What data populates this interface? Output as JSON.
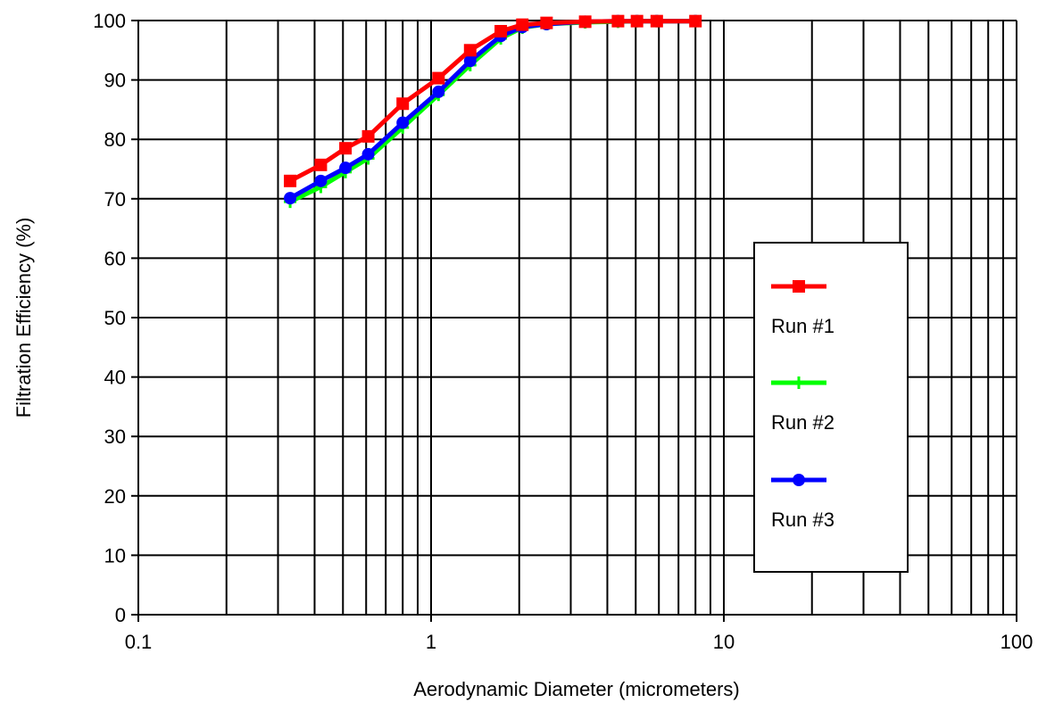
{
  "chart_data": {
    "type": "line",
    "title": "",
    "xlabel": "Aerodynamic Diameter (micrometers)",
    "ylabel": "Filtration Efficiency (%)",
    "x_scale": "log",
    "xlim": [
      0.1,
      100
    ],
    "ylim": [
      0,
      100
    ],
    "x_ticks": [
      0.1,
      1,
      10,
      100
    ],
    "x_tick_labels": [
      "0.1",
      "1",
      "10",
      "100"
    ],
    "y_ticks": [
      0,
      10,
      20,
      30,
      40,
      50,
      60,
      70,
      80,
      90,
      100
    ],
    "y_tick_labels": [
      "0",
      "10",
      "20",
      "30",
      "40",
      "50",
      "60",
      "70",
      "80",
      "90",
      "100"
    ],
    "grid": true,
    "legend_position": "right",
    "x": [
      0.33,
      0.42,
      0.51,
      0.61,
      0.8,
      1.06,
      1.36,
      1.73,
      2.05,
      2.48,
      3.36,
      4.35,
      5.05,
      5.9,
      8.0
    ],
    "series": [
      {
        "name": "Run #1",
        "color": "#ff0000",
        "marker": "square",
        "values": [
          73.0,
          75.7,
          78.5,
          80.5,
          86.0,
          90.3,
          95.0,
          98.2,
          99.3,
          99.6,
          99.8,
          99.9,
          99.9,
          99.9,
          99.9
        ]
      },
      {
        "name": "Run #2",
        "color": "#00ff00",
        "marker": "plus",
        "values": [
          69.5,
          72.0,
          74.5,
          76.8,
          82.0,
          87.5,
          92.5,
          97.0,
          98.8,
          99.4,
          99.7,
          99.8,
          99.9,
          99.9,
          99.9
        ]
      },
      {
        "name": "Run #3",
        "color": "#0000ff",
        "marker": "circle",
        "values": [
          70.1,
          73.0,
          75.2,
          77.5,
          82.8,
          88.0,
          93.2,
          97.4,
          98.9,
          99.4,
          99.8,
          99.9,
          99.9,
          99.9,
          99.9
        ]
      }
    ]
  }
}
